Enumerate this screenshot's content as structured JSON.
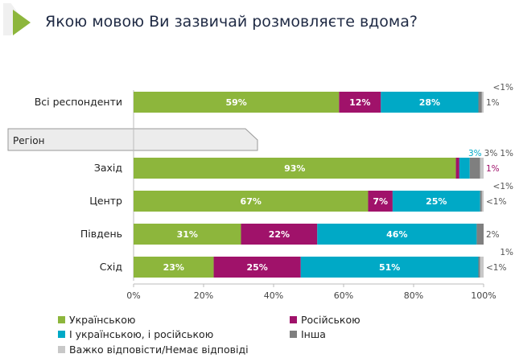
{
  "title": "Якою мовою Ви зазвичай розмовляєте вдома?",
  "region_header": "Регіон",
  "chart_data": {
    "type": "bar",
    "orientation": "horizontal",
    "stacked": true,
    "xlim": [
      0,
      100
    ],
    "x_ticks": [
      "0%",
      "20%",
      "40%",
      "60%",
      "80%",
      "100%"
    ],
    "categories": [
      "Всі респонденти",
      "Захід",
      "Центр",
      "Південь",
      "Схід"
    ],
    "series": [
      {
        "name": "Українською",
        "color": "#8db63c",
        "values": [
          59,
          93,
          67,
          31,
          23
        ],
        "labels": [
          "59%",
          "93%",
          "67%",
          "31%",
          "23%"
        ]
      },
      {
        "name": "Російською",
        "color": "#a0126a",
        "values": [
          12,
          1,
          7,
          22,
          25
        ],
        "labels": [
          "12%",
          "1%",
          "7%",
          "22%",
          "25%"
        ]
      },
      {
        "name": "І українською, і російською",
        "color": "#00a9c6",
        "values": [
          28,
          3,
          25,
          46,
          51
        ],
        "labels": [
          "28%",
          "3%",
          "25%",
          "46%",
          "51%"
        ]
      },
      {
        "name": "Інша",
        "color": "#7f7f7f",
        "values": [
          1,
          3,
          0.5,
          2,
          0.5
        ],
        "labels": [
          "1%",
          "3%",
          "<1%",
          "2%",
          "<1%"
        ]
      },
      {
        "name": "Важко відповісти/Немає відповіді",
        "color": "#c8c8c8",
        "values": [
          0.5,
          1,
          0.5,
          0,
          1
        ],
        "labels": [
          "<1%",
          "1%",
          "<1%",
          "",
          "1%"
        ]
      }
    ],
    "legend_position": "bottom"
  }
}
